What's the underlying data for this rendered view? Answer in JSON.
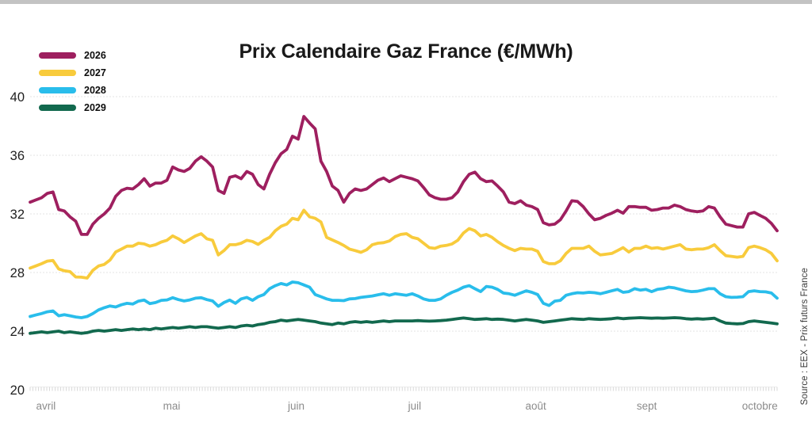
{
  "title": "Prix Calendaire Gaz France (€/MWh)",
  "source_note": "Source : EEX - Prix futurs France",
  "colors": {
    "background": "#ffffff",
    "top_strip": "#c3c3c3",
    "title_text": "#191919",
    "y_label_text": "#1f1f1f",
    "month_label_text": "#8c8c8c",
    "gridline": "#e3e3e3",
    "tick": "#d9d9d9",
    "axis_hairline": "#ececec"
  },
  "chart_data": {
    "type": "line",
    "title": "Prix Calendaire Gaz France (€/MWh)",
    "xlabel": "",
    "ylabel": "",
    "ylim": [
      20,
      40
    ],
    "yticks": [
      20,
      24,
      28,
      32,
      36,
      40
    ],
    "grid": "horizontal-dotted",
    "legend_position": "top-left",
    "x_axis": {
      "month_labels": [
        "avril",
        "mai",
        "juin",
        "juil",
        "août",
        "sept",
        "octobre"
      ],
      "month_positions": [
        0.008,
        0.178,
        0.345,
        0.506,
        0.663,
        0.812,
        0.953
      ],
      "tick_style": "daily-ruler"
    },
    "series": [
      {
        "name": "2026",
        "color": "#9E1F5F",
        "values": [
          32.8,
          32.95,
          33.1,
          33.4,
          33.5,
          32.3,
          32.2,
          31.8,
          31.5,
          30.6,
          30.6,
          31.3,
          31.7,
          32.0,
          32.4,
          33.2,
          33.6,
          33.75,
          33.7,
          34.0,
          34.4,
          33.9,
          34.1,
          34.1,
          34.3,
          35.2,
          35.0,
          34.9,
          35.1,
          35.6,
          35.9,
          35.6,
          35.2,
          33.6,
          33.4,
          34.5,
          34.6,
          34.4,
          34.9,
          34.7,
          34.0,
          33.7,
          34.7,
          35.5,
          36.1,
          36.4,
          37.3,
          37.1,
          38.65,
          38.2,
          37.8,
          35.6,
          34.9,
          33.9,
          33.6,
          32.8,
          33.4,
          33.7,
          33.6,
          33.7,
          34.0,
          34.3,
          34.45,
          34.2,
          34.4,
          34.6,
          34.5,
          34.4,
          34.25,
          33.8,
          33.3,
          33.1,
          33.0,
          33.0,
          33.1,
          33.5,
          34.2,
          34.7,
          34.85,
          34.4,
          34.2,
          34.25,
          33.9,
          33.5,
          32.8,
          32.7,
          32.9,
          32.6,
          32.5,
          32.3,
          31.4,
          31.25,
          31.3,
          31.6,
          32.2,
          32.9,
          32.85,
          32.5,
          32.0,
          31.6,
          31.7,
          31.9,
          32.05,
          32.25,
          32.05,
          32.5,
          32.5,
          32.45,
          32.45,
          32.25,
          32.3,
          32.4,
          32.4,
          32.6,
          32.5,
          32.3,
          32.2,
          32.15,
          32.2,
          32.5,
          32.4,
          31.8,
          31.3,
          31.2,
          31.1,
          31.1,
          32.0,
          32.1,
          31.9,
          31.7,
          31.35,
          30.85
        ]
      },
      {
        "name": "2027",
        "color": "#F8CB3C",
        "values": [
          28.3,
          28.45,
          28.6,
          28.78,
          28.82,
          28.25,
          28.12,
          28.06,
          27.7,
          27.68,
          27.62,
          28.15,
          28.45,
          28.55,
          28.85,
          29.4,
          29.6,
          29.8,
          29.8,
          30.0,
          29.95,
          29.8,
          29.9,
          30.08,
          30.2,
          30.5,
          30.3,
          30.05,
          30.27,
          30.5,
          30.65,
          30.3,
          30.2,
          29.2,
          29.5,
          29.9,
          29.9,
          30.0,
          30.2,
          30.12,
          29.92,
          30.2,
          30.4,
          30.85,
          31.15,
          31.3,
          31.7,
          31.6,
          32.25,
          31.8,
          31.7,
          31.45,
          30.4,
          30.22,
          30.05,
          29.85,
          29.6,
          29.5,
          29.38,
          29.55,
          29.9,
          30.0,
          30.04,
          30.15,
          30.45,
          30.6,
          30.65,
          30.4,
          30.3,
          30.0,
          29.7,
          29.65,
          29.8,
          29.85,
          29.95,
          30.2,
          30.7,
          31.0,
          30.85,
          30.5,
          30.6,
          30.4,
          30.1,
          29.85,
          29.65,
          29.5,
          29.65,
          29.6,
          29.6,
          29.45,
          28.75,
          28.6,
          28.6,
          28.8,
          29.3,
          29.65,
          29.65,
          29.65,
          29.8,
          29.45,
          29.2,
          29.25,
          29.3,
          29.5,
          29.7,
          29.4,
          29.65,
          29.65,
          29.8,
          29.65,
          29.7,
          29.6,
          29.7,
          29.8,
          29.9,
          29.6,
          29.55,
          29.6,
          29.6,
          29.7,
          29.9,
          29.5,
          29.15,
          29.1,
          29.05,
          29.1,
          29.7,
          29.8,
          29.7,
          29.55,
          29.3,
          28.8
        ]
      },
      {
        "name": "2028",
        "color": "#29BDEB",
        "values": [
          25.0,
          25.1,
          25.2,
          25.32,
          25.38,
          25.05,
          25.12,
          25.05,
          24.97,
          24.92,
          25.0,
          25.2,
          25.45,
          25.6,
          25.72,
          25.65,
          25.8,
          25.9,
          25.85,
          26.05,
          26.12,
          25.88,
          25.95,
          26.1,
          26.13,
          26.28,
          26.15,
          26.06,
          26.13,
          26.25,
          26.28,
          26.15,
          26.06,
          25.7,
          25.95,
          26.12,
          25.9,
          26.2,
          26.3,
          26.1,
          26.35,
          26.5,
          26.9,
          27.1,
          27.25,
          27.15,
          27.35,
          27.3,
          27.15,
          27.0,
          26.5,
          26.35,
          26.2,
          26.1,
          26.1,
          26.08,
          26.2,
          26.22,
          26.3,
          26.35,
          26.4,
          26.48,
          26.55,
          26.45,
          26.55,
          26.5,
          26.45,
          26.55,
          26.4,
          26.2,
          26.1,
          26.1,
          26.2,
          26.45,
          26.65,
          26.8,
          27.0,
          27.1,
          26.9,
          26.7,
          27.05,
          27.0,
          26.85,
          26.6,
          26.55,
          26.45,
          26.6,
          26.75,
          26.65,
          26.5,
          25.9,
          25.75,
          26.05,
          26.1,
          26.45,
          26.55,
          26.62,
          26.6,
          26.65,
          26.62,
          26.55,
          26.65,
          26.75,
          26.85,
          26.65,
          26.7,
          26.9,
          26.8,
          26.85,
          26.7,
          26.85,
          26.9,
          27.0,
          26.95,
          26.85,
          26.75,
          26.7,
          26.72,
          26.8,
          26.9,
          26.9,
          26.55,
          26.35,
          26.3,
          26.32,
          26.35,
          26.7,
          26.75,
          26.7,
          26.68,
          26.6,
          26.25
        ]
      },
      {
        "name": "2029",
        "color": "#12694E",
        "values": [
          23.85,
          23.9,
          23.95,
          23.9,
          23.95,
          24.0,
          23.9,
          23.95,
          23.9,
          23.85,
          23.9,
          24.0,
          24.05,
          24.0,
          24.05,
          24.1,
          24.05,
          24.1,
          24.15,
          24.1,
          24.15,
          24.1,
          24.2,
          24.15,
          24.2,
          24.25,
          24.2,
          24.25,
          24.3,
          24.25,
          24.3,
          24.3,
          24.25,
          24.2,
          24.25,
          24.3,
          24.25,
          24.35,
          24.4,
          24.35,
          24.45,
          24.5,
          24.6,
          24.65,
          24.75,
          24.7,
          24.75,
          24.8,
          24.75,
          24.7,
          24.65,
          24.55,
          24.5,
          24.45,
          24.55,
          24.5,
          24.6,
          24.65,
          24.6,
          24.65,
          24.6,
          24.65,
          24.7,
          24.65,
          24.7,
          24.7,
          24.7,
          24.7,
          24.72,
          24.7,
          24.68,
          24.7,
          24.72,
          24.75,
          24.8,
          24.85,
          24.9,
          24.85,
          24.8,
          24.82,
          24.85,
          24.8,
          24.82,
          24.8,
          24.75,
          24.7,
          24.75,
          24.8,
          24.75,
          24.7,
          24.6,
          24.65,
          24.7,
          24.75,
          24.8,
          24.85,
          24.82,
          24.8,
          24.85,
          24.82,
          24.8,
          24.82,
          24.85,
          24.9,
          24.85,
          24.88,
          24.9,
          24.92,
          24.9,
          24.88,
          24.9,
          24.88,
          24.9,
          24.92,
          24.9,
          24.85,
          24.82,
          24.85,
          24.82,
          24.85,
          24.88,
          24.7,
          24.55,
          24.52,
          24.5,
          24.52,
          24.65,
          24.7,
          24.65,
          24.6,
          24.55,
          24.5
        ]
      }
    ]
  }
}
